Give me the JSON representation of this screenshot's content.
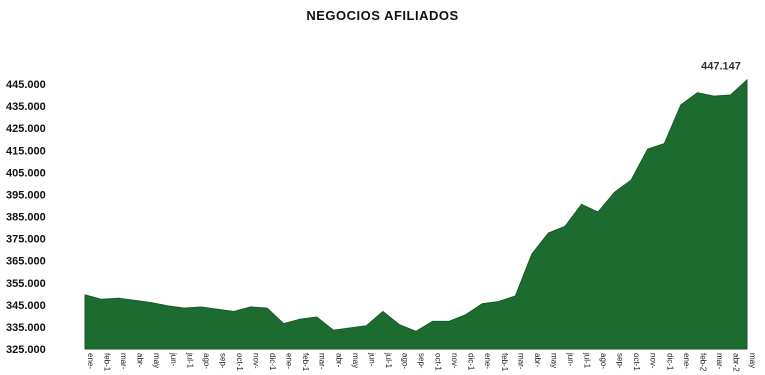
{
  "chart_data": {
    "type": "area",
    "title": "NEGOCIOS AFILIADOS",
    "xlabel": "",
    "ylabel": "",
    "ylim": [
      325000,
      445000
    ],
    "yticks": [
      "445.000",
      "435.000",
      "425.000",
      "415.000",
      "405.000",
      "395.000",
      "385.000",
      "375.000",
      "365.000",
      "355.000",
      "345.000",
      "335.000",
      "325.000"
    ],
    "grid": false,
    "legend": "none",
    "color": "#1e6b30",
    "x": [
      "ene-",
      "feb-1",
      "mar-",
      "abr-",
      "may",
      "jun-",
      "jul-1",
      "ago-",
      "sep-",
      "oct-1",
      "nov-",
      "dic-1",
      "ene-",
      "feb-1",
      "mar-",
      "abr-",
      "may",
      "jun-",
      "jul-1",
      "ago-",
      "sep-",
      "oct-1",
      "nov-",
      "dic-1",
      "ene-",
      "feb-1",
      "mar-",
      "abr-",
      "may",
      "jun-",
      "jul-1",
      "ago-",
      "sep-",
      "oct-1",
      "nov-",
      "dic-1",
      "ene-",
      "feb-2",
      "mar-",
      "abr-2",
      "may"
    ],
    "values": [
      349500,
      347500,
      348000,
      347000,
      346000,
      344500,
      343500,
      344000,
      343000,
      342000,
      344000,
      343500,
      336500,
      338500,
      339500,
      333500,
      334500,
      335500,
      342000,
      336000,
      333000,
      337500,
      337500,
      340500,
      345500,
      346500,
      349000,
      368000,
      377500,
      380500,
      390500,
      387000,
      396000,
      401500,
      415500,
      418000,
      435500,
      441000,
      439500,
      440000,
      447147
    ],
    "annotation": "447.147"
  }
}
